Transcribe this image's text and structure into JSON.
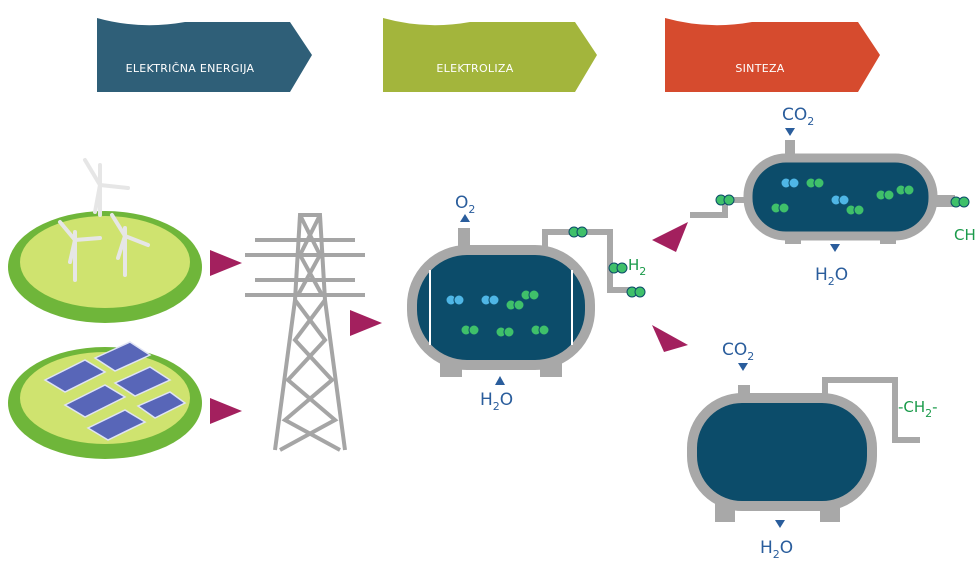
{
  "header": {
    "stages": [
      "ELEKTRIČNA ENERGIJA",
      "ELEKTROLIZA",
      "SINTEZA"
    ]
  },
  "electrolyzer": {
    "oxygen": {
      "main": "O",
      "sub": "2"
    },
    "hydrogen": {
      "main": "H",
      "sub": "2"
    },
    "water": {
      "main": "H",
      "sub": "2",
      "tail": "O"
    }
  },
  "reactor_upper": {
    "input": {
      "main": "CO",
      "sub": "2"
    },
    "water": {
      "main": "H",
      "sub": "2",
      "tail": "O"
    },
    "output": {
      "main": "CH"
    }
  },
  "reactor_lower": {
    "input": {
      "main": "CO",
      "sub": "2"
    },
    "water": {
      "main": "H",
      "sub": "2",
      "tail": "O"
    },
    "output": {
      "main": "-CH",
      "sub": "2",
      "tail": "-"
    }
  }
}
